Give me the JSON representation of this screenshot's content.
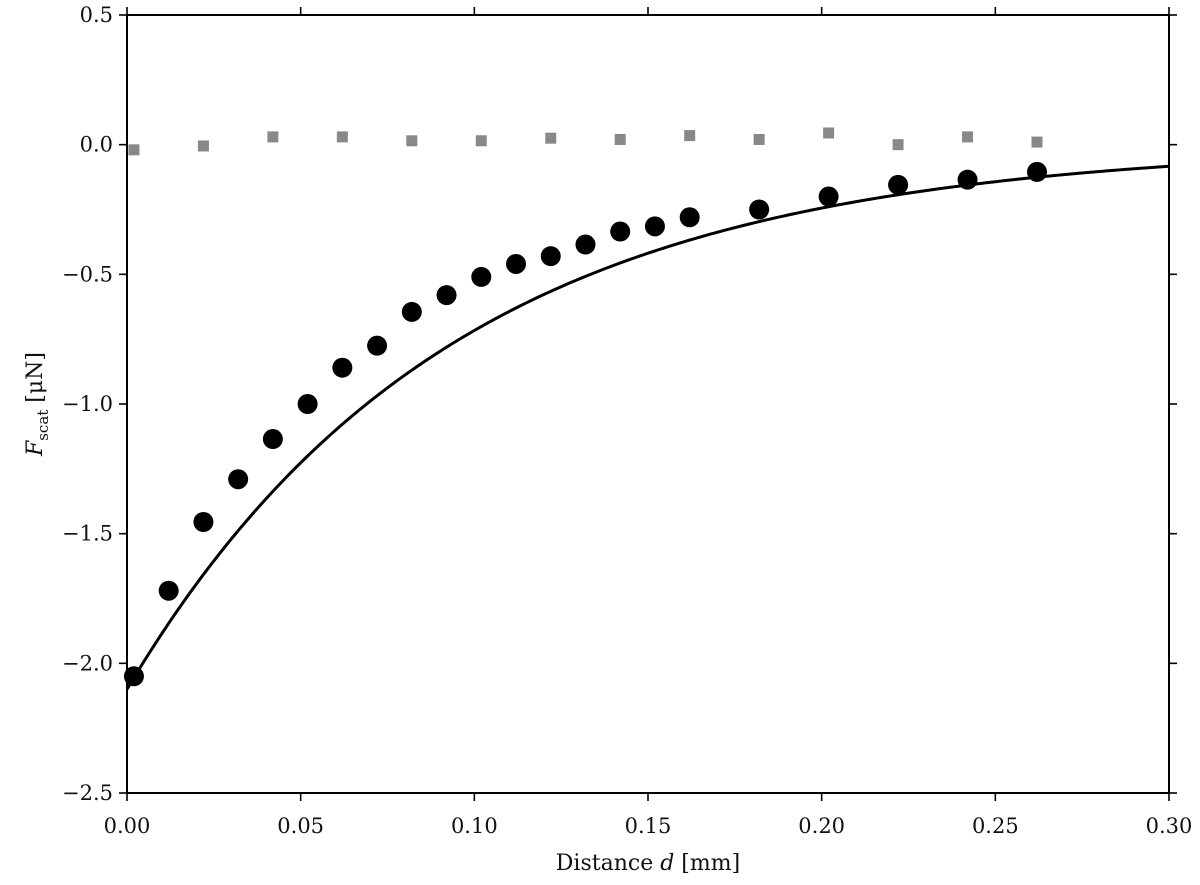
{
  "chart_data": {
    "type": "scatter",
    "xlabel": "Distance d [mm]",
    "xlabel_parts": {
      "prefix": "Distance ",
      "var": "d",
      "suffix": " [mm]"
    },
    "ylabel": "F_scat [μN]",
    "ylabel_parts": {
      "var": "F",
      "sub": "scat",
      "suffix": " [μN]"
    },
    "xlim": [
      0.0,
      0.3
    ],
    "ylim": [
      -2.5,
      0.5
    ],
    "x_ticks": [
      0.0,
      0.05,
      0.1,
      0.15,
      0.2,
      0.25,
      0.3
    ],
    "x_tick_labels": [
      "0.00",
      "0.05",
      "0.10",
      "0.15",
      "0.20",
      "0.25",
      "0.30"
    ],
    "y_ticks": [
      0.5,
      0.0,
      -0.5,
      -1.0,
      -1.5,
      -2.0,
      -2.5
    ],
    "y_tick_labels": [
      "0.5",
      "0.0",
      "−0.5",
      "−1.0",
      "−1.5",
      "−2.0",
      "−2.5"
    ],
    "grid": false,
    "series": [
      {
        "marker": "circle",
        "color": "#000000",
        "x": [
          0.002,
          0.012,
          0.022,
          0.032,
          0.042,
          0.052,
          0.062,
          0.072,
          0.082,
          0.092,
          0.102,
          0.112,
          0.122,
          0.132,
          0.142,
          0.152,
          0.162,
          0.182,
          0.202,
          0.222,
          0.242,
          0.262
        ],
        "y": [
          -2.05,
          -1.72,
          -1.455,
          -1.29,
          -1.135,
          -1.0,
          -0.86,
          -0.775,
          -0.645,
          -0.58,
          -0.51,
          -0.46,
          -0.43,
          -0.385,
          -0.335,
          -0.315,
          -0.28,
          -0.25,
          -0.2,
          -0.155,
          -0.135,
          -0.105
        ]
      },
      {
        "marker": "square",
        "color": "#888888",
        "x": [
          0.002,
          0.022,
          0.042,
          0.062,
          0.082,
          0.102,
          0.122,
          0.142,
          0.162,
          0.182,
          0.202,
          0.222,
          0.242,
          0.262
        ],
        "y": [
          -0.02,
          -0.005,
          0.03,
          0.03,
          0.015,
          0.015,
          0.025,
          0.02,
          0.035,
          0.02,
          0.045,
          0.0,
          0.03,
          0.01
        ]
      },
      {
        "type": "line",
        "color": "#000000",
        "model": "exponential",
        "amplitude": -2.1,
        "decay_mm": 0.093
      }
    ]
  }
}
